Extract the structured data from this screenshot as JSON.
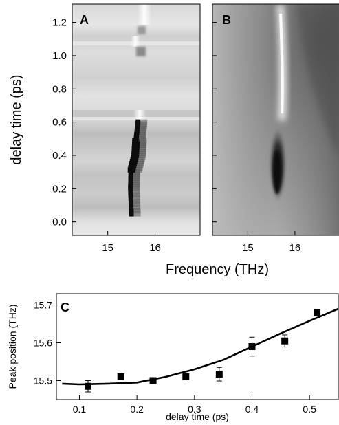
{
  "figure": {
    "background": "#ffffff"
  },
  "chart_data": [
    {
      "panel": "A",
      "type": "heatmap",
      "title": "",
      "xlabel": "Frequency (THz)",
      "ylabel": "delay time (ps)",
      "xlim": [
        14.25,
        16.95
      ],
      "ylim": [
        -0.08,
        1.31
      ],
      "xticks": [
        "15",
        "16"
      ],
      "yticks": [
        "0.0",
        "0.2",
        "0.4",
        "0.6",
        "0.8",
        "1.0",
        "1.2"
      ],
      "colormap": "grayscale",
      "dip_trace": [
        {
          "delay": 0.05,
          "frequency": 15.5
        },
        {
          "delay": 0.2,
          "frequency": 15.48
        },
        {
          "delay": 0.3,
          "frequency": 15.49
        },
        {
          "delay": 0.4,
          "frequency": 15.58
        },
        {
          "delay": 0.5,
          "frequency": 15.6
        },
        {
          "delay": 0.6,
          "frequency": 15.64
        },
        {
          "delay": 1.0,
          "frequency": 15.6
        }
      ]
    },
    {
      "panel": "B",
      "type": "heatmap",
      "title": "",
      "xlim": [
        14.25,
        16.95
      ],
      "ylim": [
        -0.08,
        1.31
      ],
      "xticks": [
        "15",
        "16"
      ],
      "colormap": "grayscale"
    },
    {
      "panel": "C",
      "type": "scatter",
      "title": "",
      "xlabel": "delay time (ps)",
      "ylabel": "Peak position (THz)",
      "xlim": [
        0.06,
        0.55
      ],
      "ylim": [
        15.45,
        15.73
      ],
      "xticks": [
        "0.1",
        "0.2",
        "0.3",
        "0.4",
        "0.5"
      ],
      "yticks": [
        "15.5",
        "15.6",
        "15.7"
      ],
      "points": [
        {
          "x": 0.115,
          "y": 15.485,
          "err": 0.015
        },
        {
          "x": 0.172,
          "y": 15.51,
          "err": 0.008
        },
        {
          "x": 0.228,
          "y": 15.5,
          "err": 0.007
        },
        {
          "x": 0.285,
          "y": 15.51,
          "err": 0.007
        },
        {
          "x": 0.343,
          "y": 15.517,
          "err": 0.018
        },
        {
          "x": 0.4,
          "y": 15.59,
          "err": 0.025
        },
        {
          "x": 0.457,
          "y": 15.605,
          "err": 0.016
        },
        {
          "x": 0.513,
          "y": 15.68,
          "err": 0.009
        }
      ],
      "fit_line": {
        "x": [
          0.07,
          0.1,
          0.15,
          0.2,
          0.25,
          0.3,
          0.35,
          0.4,
          0.45,
          0.5,
          0.55
        ],
        "y": [
          15.492,
          15.49,
          15.492,
          15.495,
          15.51,
          15.53,
          15.555,
          15.59,
          15.625,
          15.658,
          15.69
        ]
      }
    }
  ]
}
